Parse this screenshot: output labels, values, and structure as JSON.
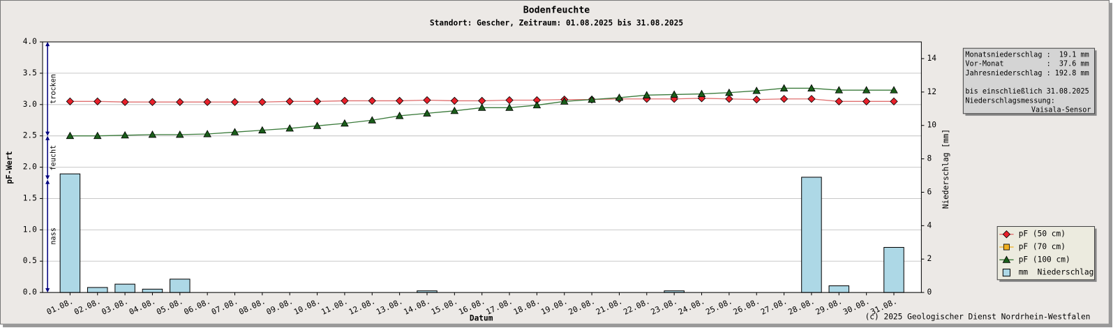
{
  "chart_data": {
    "type": "combo",
    "title": "Bodenfeuchte",
    "subtitle": "Standort: Gescher, Zeitraum: 01.08.2025 bis 31.08.2025",
    "x_label": "Datum",
    "y_label": "pF-Wert",
    "y2_label": "Niederschlag [mm]",
    "categories": [
      "01.08.",
      "02.08.",
      "03.08.",
      "04.08.",
      "05.08.",
      "06.08.",
      "07.08.",
      "08.08.",
      "09.08.",
      "10.08.",
      "11.08.",
      "12.08.",
      "13.08.",
      "14.08.",
      "15.08.",
      "16.08.",
      "17.08.",
      "18.08.",
      "19.08.",
      "20.08.",
      "21.08.",
      "22.08.",
      "23.08.",
      "24.08.",
      "25.08.",
      "26.08.",
      "27.08.",
      "28.08.",
      "29.08.",
      "30.08.",
      "31.08."
    ],
    "ylim": [
      0,
      4
    ],
    "yticks": [
      {
        "value": 0,
        "label": "0.0"
      },
      0.5,
      {
        "value": 1,
        "label": "1.0"
      },
      1.5,
      {
        "value": 2,
        "label": "2.0"
      },
      2.5,
      {
        "value": 3,
        "label": "3.0"
      },
      3.5,
      {
        "value": 4,
        "label": "4.0"
      }
    ],
    "y2lim": [
      0,
      15
    ],
    "y2ticks": [
      0,
      2,
      4,
      6,
      8,
      10,
      12,
      14
    ],
    "grid": true,
    "legend": "lower right",
    "series": [
      {
        "name": "pF (50 cm)",
        "type": "line",
        "marker": "diamond",
        "color": "#e8202a",
        "line_color": "#e07070",
        "values": [
          3.05,
          3.05,
          3.04,
          3.04,
          3.04,
          3.04,
          3.04,
          3.04,
          3.05,
          3.05,
          3.06,
          3.06,
          3.06,
          3.07,
          3.06,
          3.06,
          3.07,
          3.07,
          3.08,
          3.08,
          3.09,
          3.09,
          3.09,
          3.1,
          3.09,
          3.08,
          3.09,
          3.09,
          3.05,
          3.05,
          3.05
        ]
      },
      {
        "name": "pF (70 cm)",
        "type": "line",
        "marker": "square",
        "color": "#f0b020",
        "line_color": "#f0b020",
        "values": [
          null,
          null,
          null,
          null,
          null,
          null,
          null,
          null,
          null,
          null,
          null,
          null,
          null,
          null,
          null,
          null,
          null,
          null,
          null,
          null,
          null,
          null,
          null,
          null,
          null,
          null,
          null,
          null,
          null,
          null,
          null
        ]
      },
      {
        "name": "pF (100 cm)",
        "type": "line",
        "marker": "triangle",
        "color": "#1a5e1a",
        "line_color": "#3a7a3a",
        "values": [
          2.5,
          2.5,
          2.51,
          2.52,
          2.52,
          2.53,
          2.56,
          2.59,
          2.62,
          2.66,
          2.7,
          2.75,
          2.82,
          2.86,
          2.9,
          2.95,
          2.95,
          2.99,
          3.05,
          3.08,
          3.11,
          3.15,
          3.16,
          3.17,
          3.19,
          3.22,
          3.26,
          3.26,
          3.23,
          3.23,
          3.23
        ]
      },
      {
        "name": "mm  Niederschlag",
        "type": "bar",
        "axis": "y2",
        "color": "#add8e6",
        "values": [
          7.1,
          0.3,
          0.5,
          0.2,
          0.8,
          0,
          0,
          0,
          0,
          0,
          0,
          0,
          0,
          0.1,
          0,
          0,
          0,
          0,
          0,
          0,
          0,
          0,
          0.1,
          0,
          0,
          0,
          0,
          6.9,
          0.4,
          0,
          2.7
        ]
      }
    ],
    "zones": [
      {
        "label": "trocken",
        "from": 2.5,
        "to": 4.0
      },
      {
        "label": "feucht",
        "from": 1.8,
        "to": 2.5
      },
      {
        "label": "nass",
        "from": 0,
        "to": 1.8
      }
    ],
    "info": {
      "lines": [
        "Monatsniederschlag :  19.1 mm",
        "Vor-Monat          :  37.6 mm",
        "Jahresniederschlag : 192.8 mm",
        "bis einschließlich 31.08.2025",
        "Niederschlagsmessung:"
      ],
      "sensor": "Vaisala-Sensor"
    },
    "copyright": "(c) 2025 Geologischer Dienst Nordrhein-Westfalen"
  }
}
